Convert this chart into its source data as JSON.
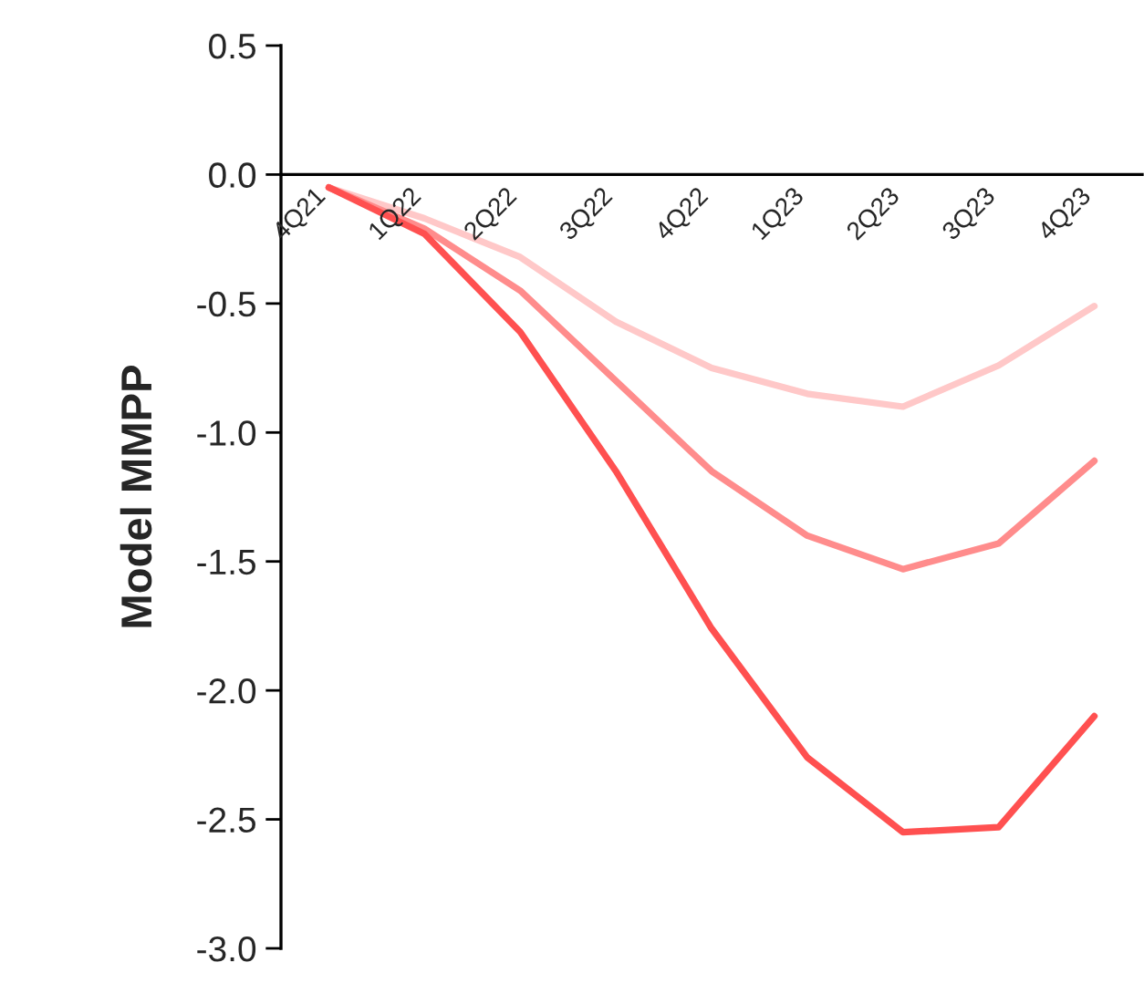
{
  "chart_data": {
    "type": "line",
    "ylabel": "Model MMPP",
    "categories": [
      "4Q21",
      "1Q22",
      "2Q22",
      "3Q22",
      "4Q22",
      "1Q23",
      "2Q23",
      "3Q23",
      "4Q23"
    ],
    "series": [
      {
        "color": "#ffc8c8",
        "values": [
          -0.05,
          -0.17,
          -0.32,
          -0.57,
          -0.75,
          -0.85,
          -0.9,
          -0.74,
          -0.51
        ]
      },
      {
        "color": "#ff8c8c",
        "values": [
          -0.05,
          -0.21,
          -0.45,
          -0.8,
          -1.15,
          -1.4,
          -1.53,
          -1.43,
          -1.11
        ]
      },
      {
        "color": "#ff5050",
        "values": [
          -0.05,
          -0.23,
          -0.61,
          -1.15,
          -1.76,
          -2.26,
          -2.55,
          -2.53,
          -2.1
        ]
      }
    ],
    "ylim": [
      -3.0,
      0.5
    ],
    "yticks": [
      0.5,
      {
        "value": 0,
        "label": "0.0"
      },
      -0.5,
      {
        "value": -1,
        "label": "-1.0"
      },
      -1.5,
      {
        "value": -2,
        "label": "-2.0"
      },
      -2.5,
      {
        "value": -3,
        "label": "-3.0"
      }
    ],
    "marker": "none",
    "line_style": "solid"
  }
}
